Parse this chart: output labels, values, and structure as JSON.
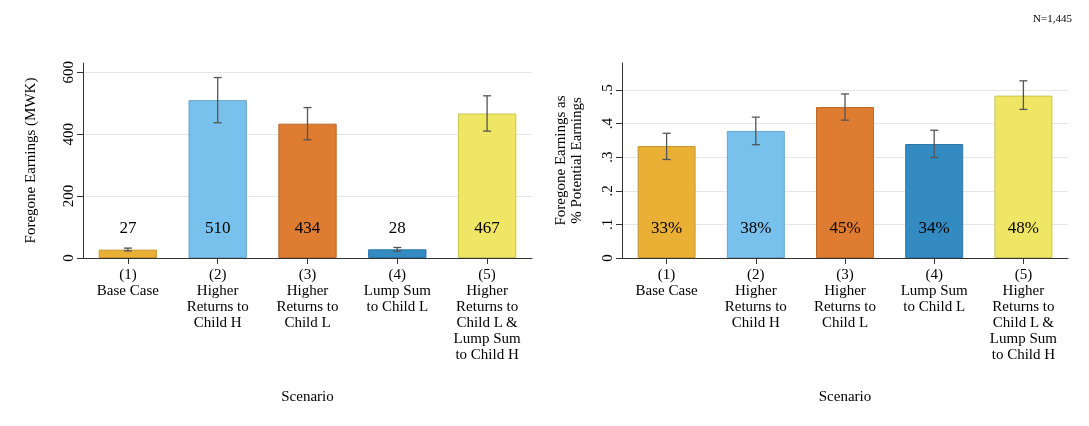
{
  "chart_data": [
    {
      "type": "bar",
      "categories": [
        "(1)\nBase Case",
        "(2)\nHigher\nReturns to\nChild H",
        "(3)\nHigher\nReturns to\nChild L",
        "(4)\nLump Sum\nto Child L",
        "(5)\nHigher\nReturns to\nChild L &\nLump Sum\nto Child H"
      ],
      "values": [
        27,
        510,
        434,
        28,
        467
      ],
      "colors": [
        "#e9b035",
        "#78c1ec",
        "#de7c32",
        "#338bc2",
        "#f0e665"
      ],
      "errors": [
        [
          23,
          32
        ],
        [
          437,
          583
        ],
        [
          382,
          486
        ],
        [
          22,
          34
        ],
        [
          410,
          524
        ]
      ],
      "value_labels": [
        "27",
        "510",
        "434",
        "28",
        "467"
      ],
      "xlabel": "Scenario",
      "ylabel": "Foregone Earnings (MWK)",
      "ylim": [
        0,
        630
      ],
      "yticks": [
        0,
        200,
        400,
        600
      ],
      "grid": "y"
    },
    {
      "type": "bar",
      "categories": [
        "(1)\nBase Case",
        "(2)\nHigher\nReturns to\nChild H",
        "(3)\nHigher\nReturns to\nChild L",
        "(4)\nLump Sum\nto Child L",
        "(5)\nHigher\nReturns to\nChild L &\nLump Sum\nto Child H"
      ],
      "values": [
        0.333,
        0.378,
        0.449,
        0.339,
        0.483
      ],
      "colors": [
        "#e9b035",
        "#78c1ec",
        "#de7c32",
        "#338bc2",
        "#f0e665"
      ],
      "errors": [
        [
          0.293,
          0.371
        ],
        [
          0.337,
          0.419
        ],
        [
          0.41,
          0.488
        ],
        [
          0.299,
          0.38
        ],
        [
          0.442,
          0.527
        ]
      ],
      "value_labels": [
        "33%",
        "38%",
        "45%",
        "34%",
        "48%"
      ],
      "xlabel": "Scenario",
      "ylabel": "Foregone Earnings as\n% Potential Earnings",
      "ylim": [
        0,
        0.58
      ],
      "yticks": [
        0,
        {
          "value": 0.1,
          "label": ".1"
        },
        {
          "value": 0.2,
          "label": ".2"
        },
        {
          "value": 0.3,
          "label": ".3"
        },
        {
          "value": 0.4,
          "label": ".4"
        },
        {
          "value": 0.5,
          "label": ".5"
        }
      ],
      "grid": "y",
      "annotations": [
        "N=1,445"
      ]
    }
  ]
}
